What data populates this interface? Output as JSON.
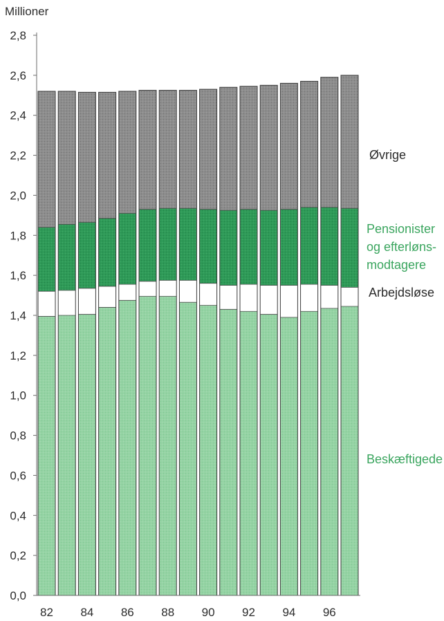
{
  "chart_data": {
    "type": "bar",
    "stacked": true,
    "y_unit_label": "Millioner",
    "ylim": [
      0,
      2.8
    ],
    "y_ticks": [
      "0,0",
      "0,2",
      "0,4",
      "0,6",
      "0,8",
      "1,0",
      "1,2",
      "1,4",
      "1,6",
      "1,8",
      "2,0",
      "2,2",
      "2,4",
      "2,6",
      "2,8"
    ],
    "categories": [
      "82",
      "83",
      "84",
      "85",
      "86",
      "87",
      "88",
      "89",
      "90",
      "91",
      "92",
      "93",
      "94",
      "95",
      "96",
      "97"
    ],
    "x_tick_labels": [
      "82",
      "",
      "84",
      "",
      "86",
      "",
      "88",
      "",
      "90",
      "",
      "92",
      "",
      "94",
      "",
      "96",
      ""
    ],
    "series": [
      {
        "name": "Beskæftigede",
        "color": "#8fcf9f",
        "values": [
          1.395,
          1.4,
          1.405,
          1.44,
          1.475,
          1.495,
          1.495,
          1.465,
          1.45,
          1.43,
          1.42,
          1.405,
          1.39,
          1.42,
          1.435,
          1.445
        ]
      },
      {
        "name": "Arbejdsløse",
        "color": "#ffffff",
        "values": [
          0.125,
          0.125,
          0.13,
          0.105,
          0.08,
          0.075,
          0.08,
          0.11,
          0.11,
          0.12,
          0.135,
          0.145,
          0.16,
          0.135,
          0.115,
          0.095
        ]
      },
      {
        "name": "Pensionister og efterlønsmodtagere",
        "color": "#2e9a57",
        "values": [
          0.32,
          0.33,
          0.33,
          0.34,
          0.355,
          0.36,
          0.36,
          0.36,
          0.37,
          0.375,
          0.375,
          0.375,
          0.38,
          0.385,
          0.39,
          0.395
        ]
      },
      {
        "name": "Øvrige",
        "color": "#8a8a8a",
        "values": [
          0.68,
          0.665,
          0.65,
          0.63,
          0.61,
          0.595,
          0.59,
          0.59,
          0.6,
          0.615,
          0.615,
          0.625,
          0.63,
          0.63,
          0.65,
          0.665
        ]
      }
    ],
    "labels": {
      "ovrige": "Øvrige",
      "pensionister": [
        "Pensionister",
        "og efterløns-",
        "modtagere"
      ],
      "arbejdslose": "Arbejdsløse",
      "beskaeftigede": "Beskæftigede"
    },
    "label_colors": {
      "dark": "#2b2b2b",
      "green": "#3aa55e"
    }
  }
}
